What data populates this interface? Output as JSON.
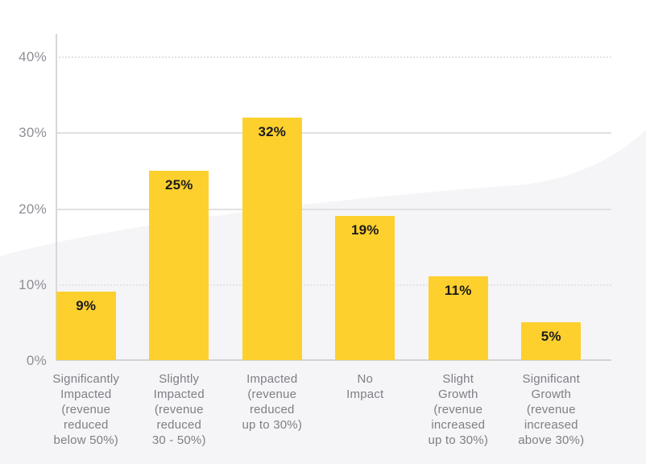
{
  "chart_data": {
    "type": "bar",
    "title": "",
    "xlabel": "",
    "ylabel": "",
    "categories": [
      "Significantly Impacted (revenue reduced below 50%)",
      "Slightly Impacted (revenue reduced 30 - 50%)",
      "Impacted (revenue reduced up to 30%)",
      "No Impact",
      "Slight Growth (revenue increased up to 30%)",
      "Significant Growth (revenue increased above 30%)"
    ],
    "categories_lines": [
      [
        "Significantly",
        "Impacted",
        "(revenue",
        "reduced",
        "below 50%)"
      ],
      [
        "Slightly",
        "Impacted",
        "(revenue",
        "reduced",
        "30 - 50%)"
      ],
      [
        "Impacted",
        "(revenue",
        "reduced",
        "up to 30%)"
      ],
      [
        "No",
        "Impact"
      ],
      [
        "Slight",
        "Growth",
        "(revenue",
        "increased",
        "up to 30%)"
      ],
      [
        "Significant",
        "Growth",
        "(revenue",
        "increased",
        "above 30%)"
      ]
    ],
    "values": [
      9,
      25,
      32,
      19,
      11,
      5
    ],
    "value_labels": [
      "9%",
      "25%",
      "32%",
      "19%",
      "11%",
      "5%"
    ],
    "y_axis": {
      "max": 43,
      "ticks": [
        {
          "label": "40%",
          "value": 40,
          "style": "dotted"
        },
        {
          "label": "30%",
          "value": 30,
          "style": "solid"
        },
        {
          "label": "20%",
          "value": 20,
          "style": "solid"
        },
        {
          "label": "10%",
          "value": 10,
          "style": "dotted"
        },
        {
          "label": "0%",
          "value": 0,
          "style": "baseline"
        }
      ]
    },
    "ylim": [
      0,
      43
    ],
    "grid": true,
    "legend": "none",
    "bar_color": "#FDD02E",
    "background_wave_color": "#F5F5F7"
  }
}
